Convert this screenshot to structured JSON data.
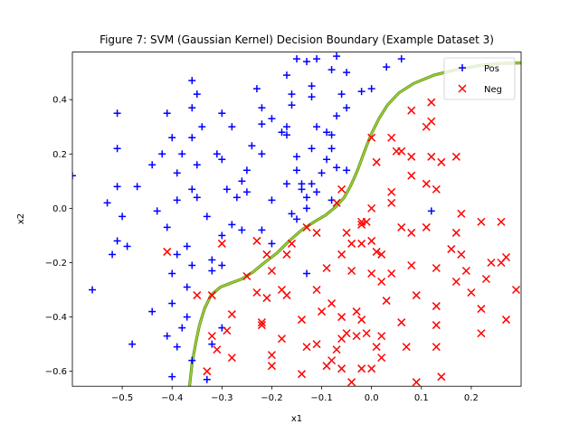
{
  "chart_data": {
    "type": "scatter",
    "title": "Figure 7: SVM (Gaussian Kernel) Decision Boundary (Example Dataset 3)",
    "xlabel": "x1",
    "ylabel": "x2",
    "xlim": [
      -0.6,
      0.3
    ],
    "ylim": [
      -0.655,
      0.575
    ],
    "xticks": [
      -0.5,
      -0.4,
      -0.3,
      -0.2,
      -0.1,
      0.0,
      0.1,
      0.2
    ],
    "xtick_labels": [
      "−0.5",
      "−0.4",
      "−0.3",
      "−0.2",
      "−0.1",
      "0.0",
      "0.1",
      "0.2"
    ],
    "yticks": [
      -0.6,
      -0.4,
      -0.2,
      0.0,
      0.2,
      0.4
    ],
    "ytick_labels": [
      "−0.6",
      "−0.4",
      "−0.2",
      "0.0",
      "0.2",
      "0.4"
    ],
    "grid": false,
    "legend_position": "top-right",
    "series": [
      {
        "name": "Pos",
        "marker": "plus",
        "color": "#0000ff",
        "points": [
          [
            -0.36,
            0.47
          ],
          [
            -0.35,
            0.42
          ],
          [
            -0.36,
            0.37
          ],
          [
            -0.36,
            0.26
          ],
          [
            -0.34,
            0.3
          ],
          [
            -0.35,
            0.16
          ],
          [
            -0.38,
            0.2
          ],
          [
            -0.39,
            0.13
          ],
          [
            -0.4,
            0.26
          ],
          [
            -0.41,
            0.35
          ],
          [
            -0.42,
            0.2
          ],
          [
            -0.44,
            0.16
          ],
          [
            -0.39,
            0.03
          ],
          [
            -0.36,
            0.07
          ],
          [
            -0.35,
            0.04
          ],
          [
            -0.33,
            -0.03
          ],
          [
            -0.37,
            -0.14
          ],
          [
            -0.36,
            -0.21
          ],
          [
            -0.39,
            -0.17
          ],
          [
            -0.41,
            -0.07
          ],
          [
            -0.4,
            -0.24
          ],
          [
            -0.43,
            -0.01
          ],
          [
            -0.37,
            -0.29
          ],
          [
            -0.4,
            -0.35
          ],
          [
            -0.37,
            -0.4
          ],
          [
            -0.38,
            -0.44
          ],
          [
            -0.39,
            -0.51
          ],
          [
            -0.41,
            -0.47
          ],
          [
            -0.4,
            -0.62
          ],
          [
            -0.44,
            -0.38
          ],
          [
            -0.48,
            -0.5
          ],
          [
            -0.32,
            -0.19
          ],
          [
            -0.32,
            -0.23
          ],
          [
            -0.3,
            -0.21
          ],
          [
            -0.3,
            -0.1
          ],
          [
            -0.28,
            -0.06
          ],
          [
            -0.26,
            -0.08
          ],
          [
            -0.27,
            0.04
          ],
          [
            -0.25,
            0.06
          ],
          [
            -0.26,
            0.1
          ],
          [
            -0.25,
            0.14
          ],
          [
            -0.24,
            0.23
          ],
          [
            -0.28,
            0.3
          ],
          [
            -0.3,
            0.35
          ],
          [
            -0.31,
            0.2
          ],
          [
            -0.3,
            0.18
          ],
          [
            -0.29,
            0.07
          ],
          [
            -0.23,
            0.44
          ],
          [
            -0.22,
            0.37
          ],
          [
            -0.22,
            0.31
          ],
          [
            -0.22,
            0.2
          ],
          [
            -0.2,
            0.03
          ],
          [
            -0.22,
            -0.08
          ],
          [
            -0.2,
            -0.13
          ],
          [
            -0.17,
            0.09
          ],
          [
            -0.18,
            0.28
          ],
          [
            -0.2,
            0.33
          ],
          [
            -0.17,
            0.27
          ],
          [
            -0.17,
            0.3
          ],
          [
            -0.16,
            0.38
          ],
          [
            -0.16,
            0.42
          ],
          [
            -0.17,
            0.49
          ],
          [
            -0.15,
            0.55
          ],
          [
            -0.13,
            0.54
          ],
          [
            -0.11,
            0.55
          ],
          [
            -0.12,
            0.45
          ],
          [
            -0.12,
            0.41
          ],
          [
            -0.11,
            0.3
          ],
          [
            -0.09,
            0.28
          ],
          [
            -0.08,
            0.27
          ],
          [
            -0.07,
            0.34
          ],
          [
            -0.05,
            0.37
          ],
          [
            -0.06,
            0.42
          ],
          [
            -0.08,
            0.51
          ],
          [
            -0.05,
            0.5
          ],
          [
            -0.02,
            0.43
          ],
          [
            0.0,
            0.44
          ],
          [
            0.03,
            0.52
          ],
          [
            0.06,
            0.55
          ],
          [
            -0.15,
            0.19
          ],
          [
            -0.15,
            0.14
          ],
          [
            -0.14,
            0.09
          ],
          [
            -0.14,
            0.07
          ],
          [
            -0.13,
            0.04
          ],
          [
            -0.12,
            0.22
          ],
          [
            -0.11,
            0.06
          ],
          [
            -0.1,
            0.13
          ],
          [
            -0.08,
            0.22
          ],
          [
            -0.07,
            0.15
          ],
          [
            -0.05,
            0.14
          ],
          [
            -0.16,
            -0.02
          ],
          [
            -0.15,
            -0.04
          ],
          [
            -0.13,
            0.0
          ],
          [
            -0.12,
            0.09
          ],
          [
            -0.09,
            0.18
          ],
          [
            -0.08,
            0.03
          ],
          [
            -0.13,
            -0.24
          ],
          [
            -0.3,
            -0.44
          ],
          [
            -0.32,
            -0.5
          ],
          [
            -0.33,
            -0.63
          ],
          [
            -0.36,
            -0.56
          ],
          [
            -0.53,
            0.02
          ],
          [
            -0.5,
            -0.03
          ],
          [
            -0.47,
            0.08
          ],
          [
            -0.51,
            0.08
          ],
          [
            -0.51,
            0.22
          ],
          [
            -0.51,
            0.35
          ],
          [
            -0.52,
            -0.17
          ],
          [
            -0.51,
            -0.12
          ],
          [
            -0.49,
            -0.14
          ],
          [
            -0.6,
            0.12
          ],
          [
            -0.56,
            -0.3
          ],
          [
            0.12,
            -0.01
          ],
          [
            -0.07,
            0.56
          ]
        ]
      },
      {
        "name": "Neg",
        "marker": "x",
        "color": "#ff0000",
        "points": [
          [
            -0.41,
            -0.16
          ],
          [
            -0.3,
            -0.13
          ],
          [
            -0.23,
            -0.12
          ],
          [
            -0.21,
            -0.17
          ],
          [
            -0.2,
            -0.23
          ],
          [
            -0.17,
            -0.17
          ],
          [
            -0.16,
            -0.13
          ],
          [
            -0.13,
            -0.07
          ],
          [
            -0.11,
            -0.09
          ],
          [
            -0.25,
            -0.25
          ],
          [
            -0.23,
            -0.31
          ],
          [
            -0.21,
            -0.33
          ],
          [
            -0.18,
            -0.3
          ],
          [
            -0.17,
            -0.32
          ],
          [
            -0.14,
            -0.41
          ],
          [
            -0.11,
            -0.3
          ],
          [
            -0.09,
            -0.22
          ],
          [
            -0.06,
            -0.17
          ],
          [
            -0.05,
            -0.09
          ],
          [
            -0.04,
            -0.13
          ],
          [
            -0.02,
            -0.06
          ],
          [
            0.0,
            -0.12
          ],
          [
            0.01,
            -0.16
          ],
          [
            -0.06,
            0.07
          ],
          [
            -0.07,
            0.02
          ],
          [
            -0.04,
            -0.23
          ],
          [
            -0.08,
            -0.35
          ],
          [
            -0.1,
            -0.38
          ],
          [
            -0.06,
            -0.4
          ],
          [
            -0.03,
            -0.38
          ],
          [
            -0.02,
            -0.41
          ],
          [
            -0.05,
            -0.46
          ],
          [
            -0.03,
            -0.47
          ],
          [
            -0.01,
            -0.46
          ],
          [
            0.01,
            -0.51
          ],
          [
            0.02,
            -0.47
          ],
          [
            0.03,
            -0.34
          ],
          [
            0.02,
            -0.27
          ],
          [
            0.04,
            -0.24
          ],
          [
            0.06,
            -0.42
          ],
          [
            0.07,
            -0.51
          ],
          [
            0.02,
            -0.55
          ],
          [
            0.0,
            -0.59
          ],
          [
            -0.02,
            -0.59
          ],
          [
            -0.06,
            -0.48
          ],
          [
            -0.08,
            -0.56
          ],
          [
            -0.11,
            -0.5
          ],
          [
            -0.14,
            -0.61
          ],
          [
            -0.09,
            -0.58
          ],
          [
            -0.07,
            -0.52
          ],
          [
            -0.06,
            -0.59
          ],
          [
            -0.04,
            -0.64
          ],
          [
            0.09,
            -0.64
          ],
          [
            0.14,
            -0.62
          ],
          [
            -0.22,
            -0.42
          ],
          [
            -0.22,
            -0.43
          ],
          [
            -0.2,
            -0.58
          ],
          [
            -0.2,
            -0.54
          ],
          [
            -0.18,
            -0.48
          ],
          [
            -0.13,
            -0.51
          ],
          [
            -0.28,
            -0.39
          ],
          [
            -0.29,
            -0.45
          ],
          [
            -0.28,
            -0.55
          ],
          [
            -0.31,
            -0.52
          ],
          [
            -0.33,
            -0.6
          ],
          [
            -0.32,
            -0.47
          ],
          [
            -0.35,
            -0.32
          ],
          [
            -0.32,
            -0.32
          ],
          [
            0.0,
            0.26
          ],
          [
            0.01,
            0.17
          ],
          [
            0.04,
            0.26
          ],
          [
            0.05,
            0.21
          ],
          [
            0.08,
            0.12
          ],
          [
            0.08,
            0.19
          ],
          [
            0.06,
            0.21
          ],
          [
            0.08,
            0.36
          ],
          [
            0.11,
            0.3
          ],
          [
            0.12,
            0.32
          ],
          [
            0.12,
            0.39
          ],
          [
            0.14,
            0.17
          ],
          [
            0.12,
            0.19
          ],
          [
            0.11,
            0.09
          ],
          [
            0.13,
            0.07
          ],
          [
            0.17,
            0.19
          ],
          [
            0.04,
            0.06
          ],
          [
            0.04,
            0.02
          ],
          [
            0.0,
            0.0
          ],
          [
            -0.01,
            -0.05
          ],
          [
            0.06,
            -0.07
          ],
          [
            0.08,
            -0.09
          ],
          [
            0.11,
            -0.07
          ],
          [
            0.16,
            -0.15
          ],
          [
            0.17,
            -0.09
          ],
          [
            0.18,
            -0.02
          ],
          [
            0.22,
            -0.05
          ],
          [
            0.26,
            -0.05
          ],
          [
            0.18,
            -0.17
          ],
          [
            0.19,
            -0.23
          ],
          [
            0.24,
            -0.2
          ],
          [
            0.26,
            -0.2
          ],
          [
            0.27,
            -0.18
          ],
          [
            0.23,
            -0.26
          ],
          [
            0.2,
            -0.31
          ],
          [
            0.22,
            -0.37
          ],
          [
            0.27,
            -0.41
          ],
          [
            0.29,
            -0.3
          ],
          [
            0.22,
            -0.46
          ],
          [
            0.13,
            -0.36
          ],
          [
            0.13,
            -0.43
          ],
          [
            0.13,
            -0.51
          ],
          [
            0.09,
            -0.32
          ],
          [
            0.08,
            -0.21
          ],
          [
            0.13,
            -0.22
          ],
          [
            0.17,
            -0.27
          ],
          [
            0.02,
            -0.17
          ],
          [
            -0.02,
            -0.05
          ],
          [
            -0.02,
            -0.13
          ],
          [
            0.0,
            -0.24
          ]
        ]
      }
    ],
    "boundary": {
      "name": "decision boundary",
      "color": "#9acd32",
      "points": [
        [
          -0.365,
          -0.655
        ],
        [
          -0.36,
          -0.57
        ],
        [
          -0.352,
          -0.49
        ],
        [
          -0.345,
          -0.43
        ],
        [
          -0.335,
          -0.37
        ],
        [
          -0.322,
          -0.32
        ],
        [
          -0.303,
          -0.29
        ],
        [
          -0.282,
          -0.275
        ],
        [
          -0.26,
          -0.26
        ],
        [
          -0.238,
          -0.235
        ],
        [
          -0.215,
          -0.2
        ],
        [
          -0.19,
          -0.165
        ],
        [
          -0.165,
          -0.12
        ],
        [
          -0.14,
          -0.08
        ],
        [
          -0.115,
          -0.05
        ],
        [
          -0.092,
          -0.025
        ],
        [
          -0.072,
          0.005
        ],
        [
          -0.055,
          0.04
        ],
        [
          -0.044,
          0.075
        ],
        [
          -0.035,
          0.11
        ],
        [
          -0.027,
          0.145
        ],
        [
          -0.018,
          0.19
        ],
        [
          -0.01,
          0.23
        ],
        [
          0.0,
          0.275
        ],
        [
          0.015,
          0.33
        ],
        [
          0.032,
          0.38
        ],
        [
          0.055,
          0.425
        ],
        [
          0.085,
          0.46
        ],
        [
          0.125,
          0.49
        ],
        [
          0.17,
          0.51
        ],
        [
          0.215,
          0.525
        ],
        [
          0.255,
          0.533
        ],
        [
          0.3,
          0.535
        ]
      ]
    }
  }
}
